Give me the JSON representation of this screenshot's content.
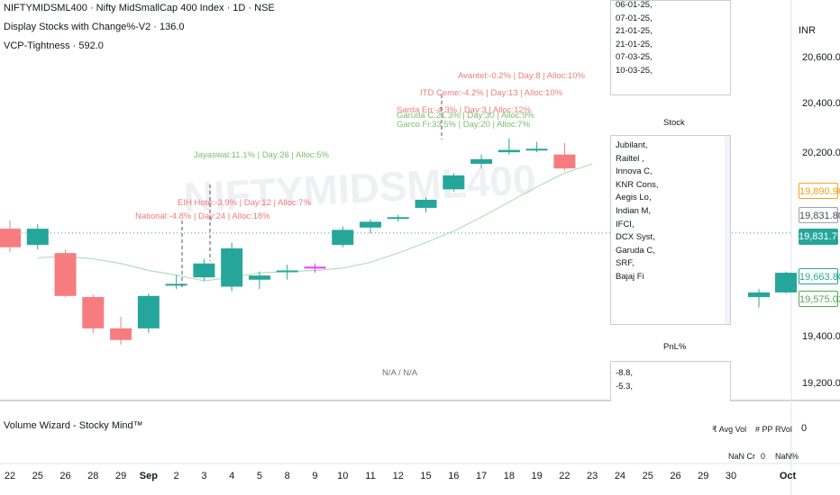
{
  "chart_data": {
    "type": "candlestick",
    "title": "NIFTYMIDSML400 · Nifty MidSmallCap 400 Index · 1D · NSE",
    "currency": "INR",
    "x_tick_labels": [
      "22",
      "25",
      "26",
      "28",
      "29",
      "Sep",
      "2",
      "3",
      "4",
      "5",
      "8",
      "9",
      "10",
      "11",
      "12",
      "15",
      "16",
      "17",
      "18",
      "19",
      "22",
      "23",
      "24",
      "25",
      "26",
      "29",
      "30",
      "Oct"
    ],
    "y_tick_labels": [
      "20,600.00",
      "20,400.00",
      "20,200.00",
      "19,400.00",
      "19,200.00"
    ],
    "candles": [
      {
        "o": 19850,
        "h": 19885,
        "l": 19750,
        "c": 19770
      },
      {
        "o": 19780,
        "h": 19870,
        "l": 19760,
        "c": 19850
      },
      {
        "o": 19745,
        "h": 19760,
        "l": 19555,
        "c": 19560
      },
      {
        "o": 19555,
        "h": 19565,
        "l": 19400,
        "c": 19420
      },
      {
        "o": 19420,
        "h": 19470,
        "l": 19350,
        "c": 19370
      },
      {
        "o": 19420,
        "h": 19570,
        "l": 19400,
        "c": 19560
      },
      {
        "o": 19605,
        "h": 19650,
        "l": 19590,
        "c": 19612
      },
      {
        "o": 19640,
        "h": 19720,
        "l": 19625,
        "c": 19700
      },
      {
        "o": 19600,
        "h": 19790,
        "l": 19580,
        "c": 19765
      },
      {
        "o": 19630,
        "h": 19665,
        "l": 19590,
        "c": 19648
      },
      {
        "o": 19665,
        "h": 19695,
        "l": 19630,
        "c": 19670
      },
      {
        "o": 19686,
        "h": 19700,
        "l": 19660,
        "c": 19686
      },
      {
        "o": 19780,
        "h": 19860,
        "l": 19770,
        "c": 19845
      },
      {
        "o": 19855,
        "h": 19890,
        "l": 19830,
        "c": 19880
      },
      {
        "o": 19895,
        "h": 19910,
        "l": 19880,
        "c": 19900
      },
      {
        "o": 19940,
        "h": 19985,
        "l": 19920,
        "c": 19975
      },
      {
        "o": 20020,
        "h": 20090,
        "l": 20010,
        "c": 20080
      },
      {
        "o": 20130,
        "h": 20170,
        "l": 20110,
        "c": 20150
      },
      {
        "o": 20180,
        "h": 20240,
        "l": 20170,
        "c": 20190
      },
      {
        "o": 20190,
        "h": 20225,
        "l": 20180,
        "c": 20195
      },
      {
        "o": 20170,
        "h": 20220,
        "l": 20100,
        "c": 20110
      },
      {
        "o": 19555,
        "h": 19590,
        "l": 19510,
        "c": 19575
      },
      {
        "o": 19575,
        "h": 19665,
        "l": 19570,
        "c": 19660
      }
    ],
    "ma_series": [
      19725,
      19730,
      19720,
      19700,
      19670,
      19650,
      19625,
      19640,
      19660,
      19665,
      19670,
      19680,
      19705,
      19745,
      19790,
      19840,
      19900,
      19965,
      20030,
      20090,
      20130
    ],
    "annotations": [
      {
        "text": "Jayaswal:11.1% | Day:26 | Alloc:5%",
        "color": "green"
      },
      {
        "text": "EIH Hote:-3.9% | Day:12 | Alloc:7%",
        "color": "red"
      },
      {
        "text": "National:-4.8% | Day:24 | Alloc:18%",
        "color": "red"
      },
      {
        "text": "Avantel:-0.2% | Day:8 | Alloc:10%",
        "color": "red"
      },
      {
        "text": "ITD Ceme:-4.2% | Day:13 | Alloc:10%",
        "color": "red"
      },
      {
        "text": "Sarda En:-4.3% | Day:3 | Alloc:12%",
        "color": "red"
      },
      {
        "text": "Garuda C:21.3% | Day:30 | Alloc:9%",
        "color": "green"
      },
      {
        "text": "Garco Fi:33.5% | Day:20 | Alloc:7%",
        "color": "green"
      }
    ],
    "price_labels": [
      {
        "text": "19,890.96",
        "style": "orange"
      },
      {
        "text": "19,831.80",
        "style": "gray"
      },
      {
        "text": "19,831.75",
        "style": "teal"
      },
      {
        "text": "19,663.80",
        "style": "teal-outline"
      },
      {
        "text": "19,575.03",
        "style": "green-outline"
      }
    ],
    "center_label": "N/A / N/A"
  },
  "legend": {
    "title": "NIFTYMIDSML400 · Nifty MidSmallCap 400 Index · 1D · NSE",
    "ind1": "Display Stocks with Change%-V2 · 136.0",
    "ind2": "VCP-Tightness · 592.0"
  },
  "watermark": "NIFTYMIDSML400",
  "panels": {
    "dates": [
      "06-01-25,",
      "07-01-25,",
      "21-01-25,",
      "21-01-25,",
      "07-03-25,",
      "10-03-25,"
    ],
    "stock_title": "Stock",
    "stocks": [
      "Jubilant,",
      "Railtel ,",
      "Innova C,",
      "KNR Cons,",
      "Aegis Lo,",
      "Indian M,",
      "IFCI,",
      "DCX Syst,",
      "Garuda C,",
      "SRF,",
      "Bajaj Fi"
    ],
    "pnl_title": "PnL%",
    "pnl": [
      "-8.8,",
      "-5.3,"
    ]
  },
  "volume": {
    "title": "Volume Wizard - Stocky Mind™",
    "value": "0",
    "headers": [
      "₹ Avg Vol",
      "# PP",
      "RVol"
    ],
    "row": [
      "NaN Cr",
      "0",
      "NaN%"
    ]
  },
  "colors": {
    "up": "#26a69a",
    "down": "#f77c80",
    "ma": "#b7dcc0",
    "dotted": "#26a69a",
    "magenta": "#e040fb"
  }
}
